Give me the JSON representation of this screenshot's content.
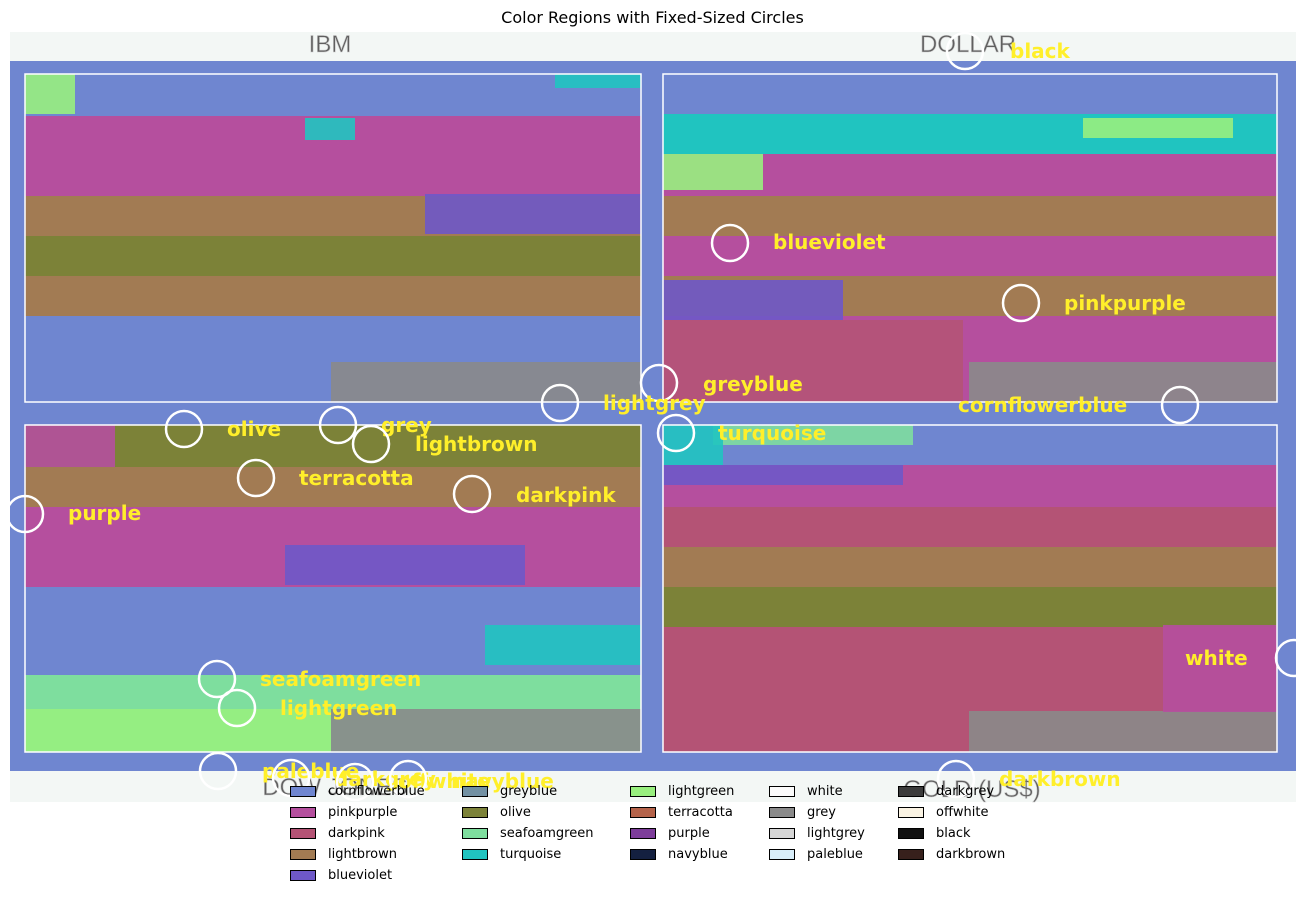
{
  "title": "Color Regions with Fixed-Sized Circles",
  "panel_titles": [
    "IBM",
    "DOLLAR",
    "DOW JONES",
    "GOLD (US$)"
  ],
  "circle_labels": [
    {
      "label": "black"
    },
    {
      "label": "blueviolet"
    },
    {
      "label": "pinkpurple"
    },
    {
      "label": "greyblue"
    },
    {
      "label": "lightgrey"
    },
    {
      "label": "cornflowerblue"
    },
    {
      "label": "olive"
    },
    {
      "label": "grey"
    },
    {
      "label": "lightbrown"
    },
    {
      "label": "turquoise"
    },
    {
      "label": "terracotta"
    },
    {
      "label": "darkpink"
    },
    {
      "label": "purple"
    },
    {
      "label": "seafoamgreen"
    },
    {
      "label": "lightgreen"
    },
    {
      "label": "white"
    },
    {
      "label": "paleblue"
    },
    {
      "label": "darkgrey"
    },
    {
      "label": "offwhite"
    },
    {
      "label": "navyblue"
    },
    {
      "label": "darkbrown"
    }
  ],
  "legend": [
    {
      "label": "cornflowerblue",
      "color": "#6f86d0"
    },
    {
      "label": "pinkpurple",
      "color": "#b54f9e"
    },
    {
      "label": "darkpink",
      "color": "#b45375"
    },
    {
      "label": "lightbrown",
      "color": "#a27b53"
    },
    {
      "label": "blueviolet",
      "color": "#6e58c8"
    },
    {
      "label": "greyblue",
      "color": "#7291a3"
    },
    {
      "label": "olive",
      "color": "#7c8238"
    },
    {
      "label": "seafoamgreen",
      "color": "#7ede9e"
    },
    {
      "label": "turquoise",
      "color": "#20c4c0"
    },
    {
      "label": "lightgreen",
      "color": "#98ef7e"
    },
    {
      "label": "terracotta",
      "color": "#b5634a"
    },
    {
      "label": "purple",
      "color": "#7d3d9a"
    },
    {
      "label": "navyblue",
      "color": "#142040"
    },
    {
      "label": "white",
      "color": "#fbfbfb"
    },
    {
      "label": "grey",
      "color": "#8a8a8a"
    },
    {
      "label": "lightgrey",
      "color": "#d6d6d6"
    },
    {
      "label": "paleblue",
      "color": "#d8eefa"
    },
    {
      "label": "darkgrey",
      "color": "#3b3b3b"
    },
    {
      "label": "offwhite",
      "color": "#faf3e3"
    },
    {
      "label": "black",
      "color": "#111111"
    },
    {
      "label": "darkbrown",
      "color": "#37201c"
    }
  ],
  "colors": {
    "frame": "#6f86d0",
    "background": "#f3f7f5",
    "circle_label": "#ffef2a",
    "circle_stroke": "#ffffff"
  }
}
